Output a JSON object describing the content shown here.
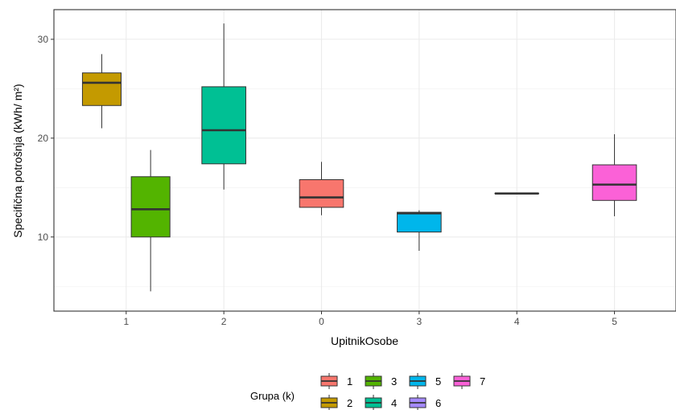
{
  "chart_data": {
    "type": "boxplot",
    "xlabel": "UpitnikOsobe",
    "ylabel": "Specifična potrošnja (kWh/ m²)",
    "ylim": [
      2.5,
      33
    ],
    "y_ticks": [
      10,
      20,
      30
    ],
    "categories": [
      "1",
      "2",
      "0",
      "3",
      "4",
      "5"
    ],
    "grid": true,
    "legend": {
      "title": "Grupa (k)",
      "position": "bottom",
      "entries": [
        "1",
        "2",
        "3",
        "4",
        "5",
        "6",
        "7"
      ]
    },
    "group_colors": {
      "1": "#F8766D",
      "2": "#C49A00",
      "3": "#53B400",
      "4": "#00C094",
      "5": "#00B6EB",
      "6": "#A58AFF",
      "7": "#FB61D7"
    },
    "boxes": [
      {
        "category": "1",
        "group": "2",
        "offset": -1,
        "min": 21.0,
        "q1": 23.3,
        "median": 25.6,
        "q3": 26.6,
        "max": 28.5
      },
      {
        "category": "1",
        "group": "3",
        "offset": 1,
        "min": 4.5,
        "q1": 10.0,
        "median": 12.8,
        "q3": 16.1,
        "max": 18.8
      },
      {
        "category": "2",
        "group": "4",
        "offset": 0,
        "min": 14.8,
        "q1": 17.4,
        "median": 20.8,
        "q3": 25.2,
        "max": 31.6
      },
      {
        "category": "0",
        "group": "1",
        "offset": 0,
        "min": 12.2,
        "q1": 13.0,
        "median": 14.0,
        "q3": 15.8,
        "max": 17.6
      },
      {
        "category": "3",
        "group": "5",
        "offset": 0,
        "min": 8.6,
        "q1": 10.5,
        "median": 12.4,
        "q3": 12.5,
        "max": 12.7
      },
      {
        "category": "4",
        "group": "6",
        "offset": 0,
        "min": 14.4,
        "q1": 14.4,
        "median": 14.4,
        "q3": 14.4,
        "max": 14.4
      },
      {
        "category": "5",
        "group": "7",
        "offset": 0,
        "min": 12.1,
        "q1": 13.7,
        "median": 15.3,
        "q3": 17.3,
        "max": 20.4
      }
    ]
  }
}
